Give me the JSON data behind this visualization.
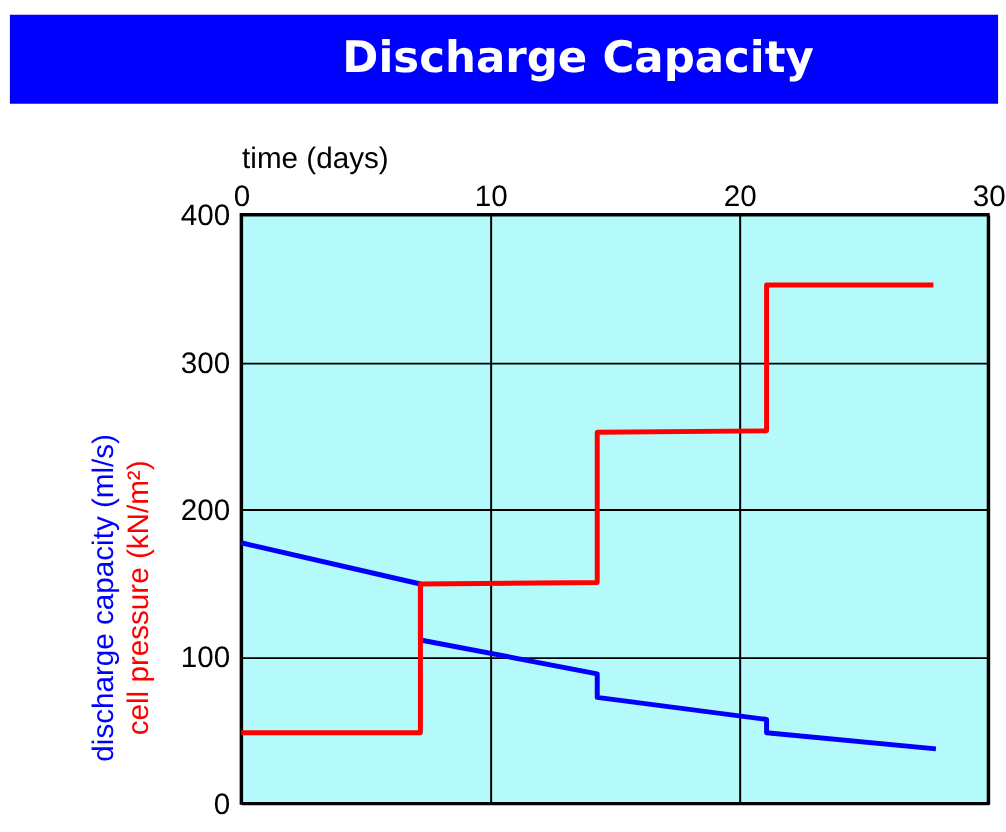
{
  "chart_data": {
    "type": "line",
    "title": "Discharge Capacity",
    "xlabel": "time (days)",
    "xlim": [
      0,
      30
    ],
    "xticks": [
      0,
      10,
      20,
      30
    ],
    "ylim": [
      0,
      400
    ],
    "yticks": [
      0,
      100,
      200,
      300,
      400
    ],
    "grid": true,
    "legend": false,
    "line_style": "solid",
    "marker": "none",
    "series": [
      {
        "name": "discharge capacity (ml/s)",
        "color": "#0000ff",
        "x": [
          0,
          7.2,
          7.2,
          14.3,
          14.3,
          21.1,
          21.1,
          27.9
        ],
        "values": [
          177,
          149,
          111,
          88,
          72,
          57,
          48,
          37
        ]
      },
      {
        "name": "cell pressure (kN/m²)",
        "color": "#ff0000",
        "x": [
          0,
          7.2,
          7.2,
          14.3,
          14.3,
          21.1,
          21.1,
          27.8
        ],
        "values": [
          48,
          48,
          149,
          150,
          252,
          253,
          352,
          352
        ]
      }
    ]
  }
}
